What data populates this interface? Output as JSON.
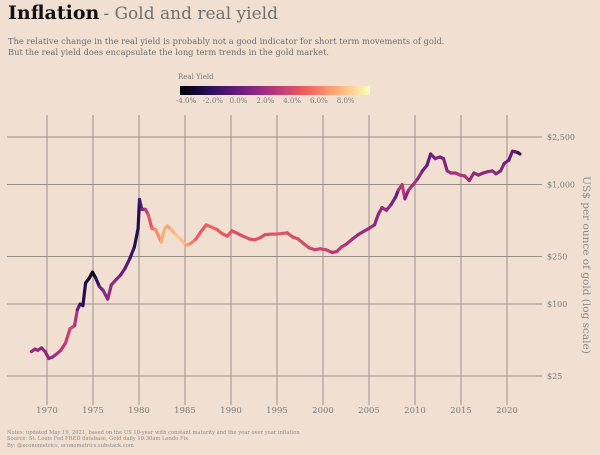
{
  "header": {
    "title_bold": "Inflation",
    "title_sub": "- Gold and real yield",
    "description": [
      "The relative change in the real yield is probably not a good indicator for short term movements of gold.",
      "But the real yield does encapsulate the long term trends in the gold market."
    ]
  },
  "legend": {
    "title": "Real Yield",
    "ticks": [
      "-4.0%",
      "-2.0%",
      "0.0%",
      "2.0%",
      "4.0%",
      "6.0%",
      "8.0%"
    ],
    "range": [
      -5.0,
      9.5
    ],
    "colors": [
      "#000004",
      "#2c115f",
      "#721f81",
      "#b73779",
      "#f1605d",
      "#feb078",
      "#fcfdbf"
    ]
  },
  "notes": [
    "Notes: updated May 19, 2021, based on the US 10-year with constant maturity and the year over year inflation",
    "Source: St. Louis Fed FRED database, Gold daily 10:30am Londo Fix",
    "By: @econometrics, econometrics.substack.com"
  ],
  "chart_data": {
    "type": "line",
    "title": "Inflation - Gold and real yield",
    "xlabel": "",
    "ylabel": "US$ per ounce of gold (log scale)",
    "yscale": "log",
    "xlim": [
      1966.3,
      2024.0
    ],
    "ylim": [
      16,
      3700
    ],
    "grid": true,
    "x_ticks": [
      1970,
      1975,
      1980,
      1985,
      1990,
      1995,
      2000,
      2005,
      2010,
      2015,
      2020
    ],
    "x_tick_labels": [
      "1970",
      "1975",
      "1980",
      "1985",
      "1990",
      "1995",
      "2000",
      "2005",
      "2010",
      "2015",
      "2020"
    ],
    "y_ticks": [
      25,
      100,
      250,
      1000,
      2500
    ],
    "y_tick_labels": [
      "$25",
      "$100",
      "$250",
      "$1,000",
      "$2,500"
    ],
    "color_by": "Real Yield (%)",
    "series": [
      {
        "name": "Gold price",
        "x": [
          1968.3,
          1968.7,
          1969.0,
          1969.4,
          1969.8,
          1970.2,
          1970.6,
          1971.0,
          1971.5,
          1972.0,
          1972.5,
          1973.0,
          1973.3,
          1973.6,
          1973.9,
          1974.2,
          1974.6,
          1974.95,
          1975.3,
          1975.7,
          1976.1,
          1976.6,
          1977.0,
          1977.5,
          1978.0,
          1978.5,
          1979.0,
          1979.5,
          1979.9,
          1980.05,
          1980.3,
          1980.7,
          1981.0,
          1981.4,
          1981.8,
          1982.4,
          1982.8,
          1983.1,
          1983.5,
          1984.0,
          1984.5,
          1985.1,
          1985.6,
          1986.2,
          1986.7,
          1987.3,
          1987.9,
          1988.5,
          1989.0,
          1989.6,
          1990.1,
          1990.7,
          1991.3,
          1992.0,
          1992.6,
          1993.2,
          1993.7,
          1994.3,
          1995.0,
          1995.6,
          1996.1,
          1996.7,
          1997.3,
          1997.9,
          1998.5,
          1999.1,
          1999.7,
          2000.3,
          2001.0,
          2001.5,
          2002.0,
          2002.6,
          2003.2,
          2003.8,
          2004.4,
          2005.0,
          2005.6,
          2006.0,
          2006.4,
          2006.9,
          2007.4,
          2007.9,
          2008.2,
          2008.6,
          2008.9,
          2009.3,
          2009.8,
          2010.3,
          2010.8,
          2011.3,
          2011.7,
          2012.2,
          2012.7,
          2013.1,
          2013.5,
          2013.9,
          2014.4,
          2014.9,
          2015.4,
          2015.9,
          2016.4,
          2016.9,
          2017.4,
          2017.9,
          2018.4,
          2018.8,
          2019.3,
          2019.7,
          2020.2,
          2020.6,
          2020.9,
          2021.2,
          2021.4
        ],
        "y": [
          40,
          42,
          41,
          43,
          40,
          35,
          36,
          38,
          41,
          47,
          62,
          66,
          90,
          100,
          97,
          150,
          165,
          185,
          165,
          140,
          130,
          110,
          145,
          160,
          175,
          200,
          240,
          300,
          430,
          750,
          620,
          620,
          560,
          430,
          420,
          330,
          430,
          450,
          420,
          380,
          350,
          310,
          320,
          350,
          400,
          460,
          440,
          420,
          390,
          370,
          410,
          390,
          370,
          350,
          345,
          360,
          380,
          385,
          385,
          390,
          395,
          365,
          350,
          320,
          295,
          285,
          290,
          285,
          270,
          275,
          300,
          320,
          350,
          380,
          405,
          430,
          460,
          560,
          640,
          610,
          680,
          790,
          900,
          1000,
          760,
          900,
          1000,
          1120,
          1300,
          1450,
          1800,
          1650,
          1700,
          1650,
          1300,
          1250,
          1250,
          1200,
          1180,
          1080,
          1250,
          1200,
          1250,
          1280,
          1300,
          1230,
          1300,
          1500,
          1600,
          1900,
          1880,
          1850,
          1800
        ],
        "real_yield": [
          1.0,
          1.0,
          1.2,
          1.0,
          0.5,
          0.8,
          1.0,
          1.5,
          2.0,
          2.5,
          3.0,
          3.3,
          0.5,
          -1.5,
          -2.5,
          -3.5,
          -4.0,
          -4.5,
          -4.0,
          -1.0,
          0.5,
          1.0,
          1.0,
          1.0,
          0.0,
          -0.5,
          -1.5,
          -2.5,
          -3.5,
          -2.5,
          -0.5,
          1.5,
          3.5,
          4.5,
          5.5,
          6.5,
          7.5,
          6.5,
          7.0,
          7.5,
          8.0,
          7.0,
          6.0,
          5.0,
          4.0,
          4.5,
          5.0,
          4.5,
          4.5,
          4.0,
          4.0,
          3.5,
          4.0,
          3.8,
          3.6,
          4.0,
          3.5,
          4.0,
          4.2,
          4.0,
          3.8,
          3.5,
          3.5,
          3.6,
          3.3,
          3.0,
          3.2,
          3.0,
          2.5,
          2.0,
          2.5,
          2.0,
          1.5,
          1.0,
          1.0,
          1.5,
          1.0,
          0.5,
          1.0,
          1.5,
          0.5,
          -0.5,
          -1.0,
          4.5,
          0.0,
          1.0,
          2.0,
          1.0,
          0.5,
          -0.5,
          -0.8,
          0.0,
          0.5,
          -0.5,
          1.0,
          1.5,
          1.5,
          2.0,
          2.0,
          1.5,
          0.5,
          1.0,
          0.5,
          0.8,
          1.0,
          0.8,
          0.5,
          0.5,
          -0.5,
          -0.8,
          -0.5,
          -1.5,
          -3.0
        ]
      }
    ]
  }
}
